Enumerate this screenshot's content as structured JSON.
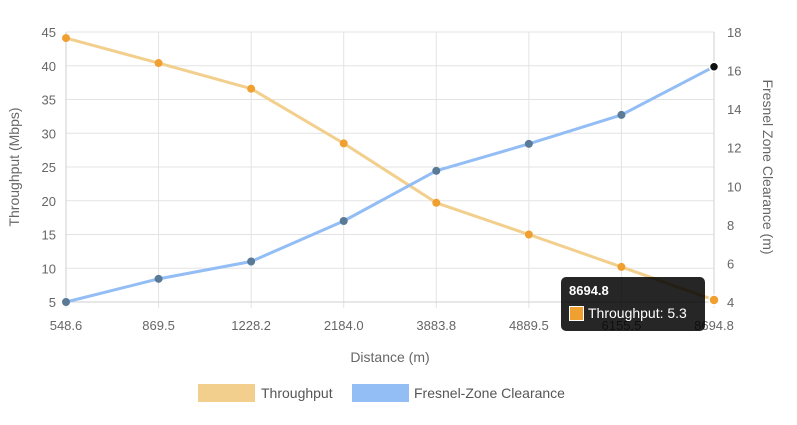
{
  "chart_data": {
    "type": "line",
    "x_categories": [
      "548.6",
      "869.5",
      "1228.2",
      "2184.0",
      "3883.8",
      "4889.5",
      "6155.5",
      "8694.8"
    ],
    "xlabel": "Distance (m)",
    "ylabel_left": "Throughput (Mbps)",
    "ylabel_right": "Fresnel Zone Clearance (m)",
    "y_left": {
      "min": 5,
      "max": 45,
      "ticks": [
        "5",
        "10",
        "15",
        "20",
        "25",
        "30",
        "35",
        "40",
        "45"
      ]
    },
    "y_right": {
      "min": 4,
      "max": 18,
      "ticks": [
        "4",
        "6",
        "8",
        "10",
        "12",
        "14",
        "16",
        "18"
      ]
    },
    "grid": true,
    "legend_position": "bottom",
    "series": [
      {
        "name": "Throughput",
        "axis": "left",
        "color": "#f2cf8c",
        "point_color": "#f0a030",
        "values": [
          44.1,
          40.4,
          36.6,
          28.5,
          19.7,
          15.0,
          10.2,
          5.3
        ]
      },
      {
        "name": "Fresnel-Zone Clearance",
        "axis": "right",
        "color": "#92bdf5",
        "point_color": "#5a7a96",
        "values": [
          4.0,
          5.2,
          6.1,
          8.2,
          10.8,
          12.2,
          13.7,
          16.2
        ]
      }
    ],
    "tooltip": {
      "title": "8694.8",
      "label": "Throughput: 5.3"
    }
  }
}
